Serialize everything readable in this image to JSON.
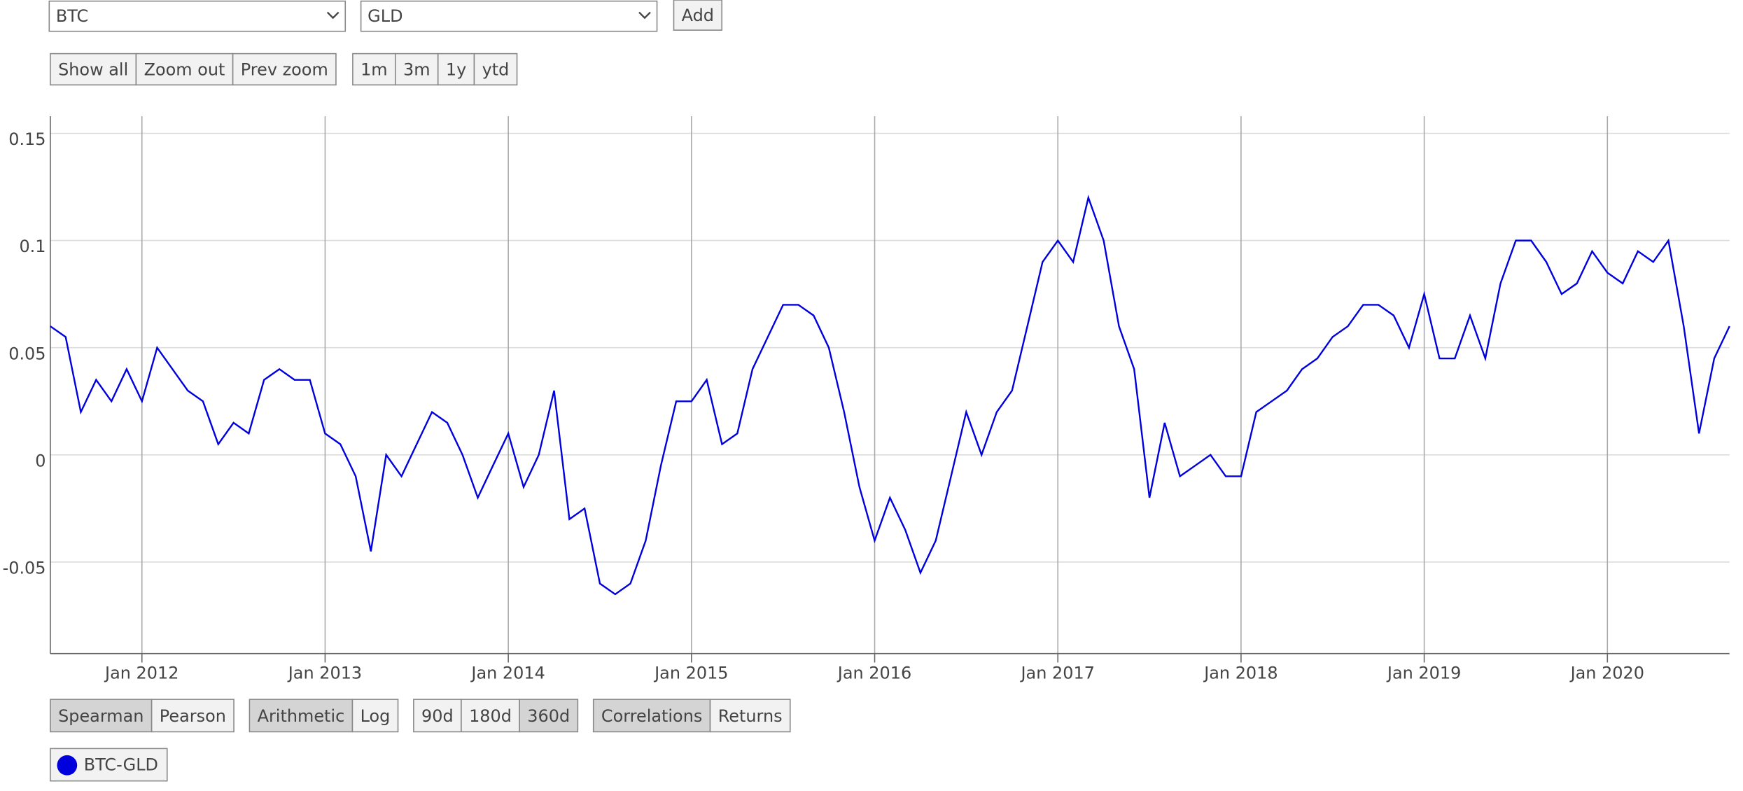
{
  "controls": {
    "selectors": [
      "BTC",
      "GLD"
    ],
    "add_button": "Add",
    "zoom_buttons": [
      "Show all",
      "Zoom out",
      "Prev zoom"
    ],
    "range_buttons": [
      "1m",
      "3m",
      "1y",
      "ytd"
    ],
    "toggle_groups": [
      {
        "options": [
          "Spearman",
          "Pearson"
        ],
        "selected": 0
      },
      {
        "options": [
          "Arithmetic",
          "Log"
        ],
        "selected": 0
      },
      {
        "options": [
          "90d",
          "180d",
          "360d"
        ],
        "selected": 2
      },
      {
        "options": [
          "Correlations",
          "Returns"
        ],
        "selected": 0
      }
    ]
  },
  "chart_data": {
    "type": "line",
    "x": [
      "2011-07",
      "2011-08",
      "2011-09",
      "2011-10",
      "2011-11",
      "2011-12",
      "2012-01",
      "2012-02",
      "2012-03",
      "2012-04",
      "2012-05",
      "2012-06",
      "2012-07",
      "2012-08",
      "2012-09",
      "2012-10",
      "2012-11",
      "2012-12",
      "2013-01",
      "2013-02",
      "2013-03",
      "2013-04",
      "2013-05",
      "2013-06",
      "2013-07",
      "2013-08",
      "2013-09",
      "2013-10",
      "2013-11",
      "2013-12",
      "2014-01",
      "2014-02",
      "2014-03",
      "2014-04",
      "2014-05",
      "2014-06",
      "2014-07",
      "2014-08",
      "2014-09",
      "2014-10",
      "2014-11",
      "2014-12",
      "2015-01",
      "2015-02",
      "2015-03",
      "2015-04",
      "2015-05",
      "2015-06",
      "2015-07",
      "2015-08",
      "2015-09",
      "2015-10",
      "2015-11",
      "2015-12",
      "2016-01",
      "2016-02",
      "2016-03",
      "2016-04",
      "2016-05",
      "2016-06",
      "2016-07",
      "2016-08",
      "2016-09",
      "2016-10",
      "2016-11",
      "2016-12",
      "2017-01",
      "2017-02",
      "2017-03",
      "2017-04",
      "2017-05",
      "2017-06",
      "2017-07",
      "2017-08",
      "2017-09",
      "2017-10",
      "2017-11",
      "2017-12",
      "2018-01",
      "2018-02",
      "2018-03",
      "2018-04",
      "2018-05",
      "2018-06",
      "2018-07",
      "2018-08",
      "2018-09",
      "2018-10",
      "2018-11",
      "2018-12",
      "2019-01",
      "2019-02",
      "2019-03",
      "2019-04",
      "2019-05",
      "2019-06",
      "2019-07",
      "2019-08",
      "2019-09",
      "2019-10",
      "2019-11",
      "2019-12",
      "2020-01",
      "2020-02",
      "2020-03",
      "2020-04",
      "2020-05",
      "2020-06",
      "2020-07",
      "2020-08",
      "2020-09"
    ],
    "series": [
      {
        "name": "BTC-GLD",
        "color": "#0000dd",
        "values": [
          0.06,
          0.055,
          0.02,
          0.035,
          0.025,
          0.04,
          0.025,
          0.05,
          0.04,
          0.03,
          0.025,
          0.005,
          0.015,
          0.01,
          0.035,
          0.04,
          0.035,
          0.035,
          0.01,
          0.005,
          -0.01,
          -0.045,
          0.0,
          -0.01,
          0.005,
          0.02,
          0.015,
          0.0,
          -0.02,
          -0.005,
          0.01,
          -0.015,
          0.0,
          0.03,
          -0.03,
          -0.025,
          -0.06,
          -0.065,
          -0.06,
          -0.04,
          -0.005,
          0.025,
          0.025,
          0.035,
          0.005,
          0.01,
          0.04,
          0.055,
          0.07,
          0.07,
          0.065,
          0.05,
          0.02,
          -0.015,
          -0.04,
          -0.02,
          -0.035,
          -0.055,
          -0.04,
          -0.01,
          0.02,
          0.0,
          0.02,
          0.03,
          0.06,
          0.09,
          0.1,
          0.09,
          0.12,
          0.1,
          0.06,
          0.04,
          -0.02,
          0.015,
          -0.01,
          -0.005,
          0.0,
          -0.01,
          -0.01,
          0.02,
          0.025,
          0.03,
          0.04,
          0.045,
          0.055,
          0.06,
          0.07,
          0.07,
          0.065,
          0.05,
          0.075,
          0.045,
          0.045,
          0.065,
          0.045,
          0.08,
          0.1,
          0.1,
          0.09,
          0.075,
          0.08,
          0.095,
          0.085,
          0.08,
          0.095,
          0.09,
          0.1,
          0.06,
          0.01,
          0.045,
          0.06
        ]
      }
    ],
    "xlim": [
      "2011-07",
      "2020-09"
    ],
    "xticks": [
      {
        "value": "2012-01",
        "label": "Jan 2012"
      },
      {
        "value": "2013-01",
        "label": "Jan 2013"
      },
      {
        "value": "2014-01",
        "label": "Jan 2014"
      },
      {
        "value": "2015-01",
        "label": "Jan 2015"
      },
      {
        "value": "2016-01",
        "label": "Jan 2016"
      },
      {
        "value": "2017-01",
        "label": "Jan 2017"
      },
      {
        "value": "2018-01",
        "label": "Jan 2018"
      },
      {
        "value": "2019-01",
        "label": "Jan 2019"
      },
      {
        "value": "2020-01",
        "label": "Jan 2020"
      }
    ],
    "ylim": [
      -0.0927,
      0.158
    ],
    "yticks": [
      -0.05,
      0,
      0.05,
      0.1,
      0.15
    ],
    "grid": true
  }
}
